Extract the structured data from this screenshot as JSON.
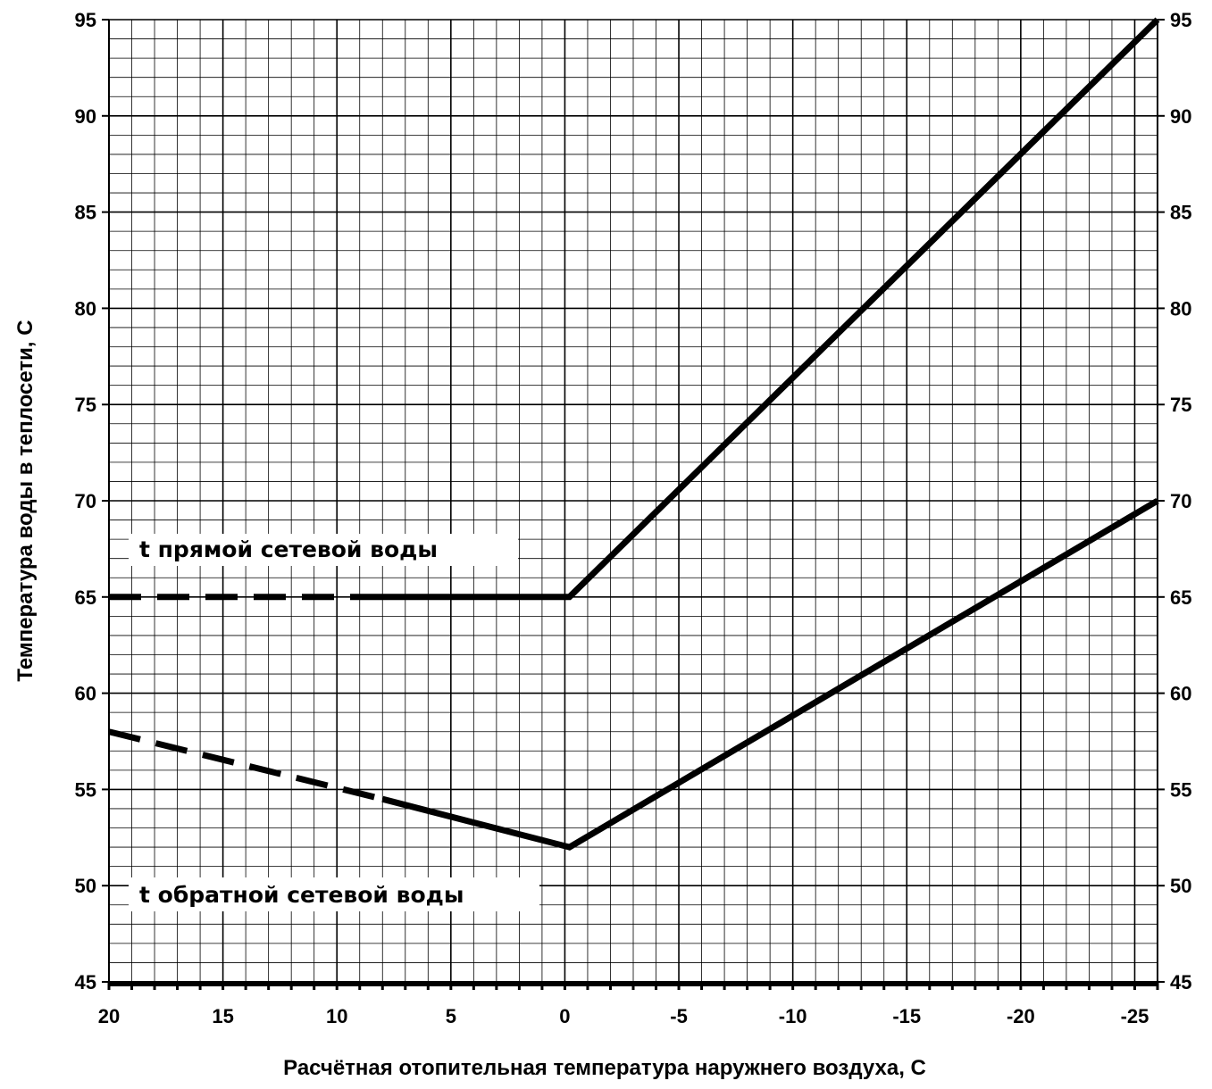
{
  "chart_data": {
    "type": "line",
    "xlabel": "Расчётная отопительная температура наружнего воздуха,  С",
    "ylabel": "Температура воды в теплосети,  С",
    "xlim": [
      20,
      -26
    ],
    "ylim": [
      45,
      95
    ],
    "x_ticks": [
      "20",
      "15",
      "10",
      "5",
      "0",
      "-5",
      "-10",
      "-15",
      "-20",
      "-25"
    ],
    "y_ticks": [
      "45",
      "50",
      "55",
      "60",
      "65",
      "70",
      "75",
      "80",
      "85",
      "90",
      "95"
    ],
    "grid": true,
    "series": [
      {
        "name": "t прямой сетевой воды",
        "solid": {
          "x": [
            9,
            -0.2,
            -26
          ],
          "y": [
            65,
            65,
            95
          ]
        },
        "dashed": {
          "x": [
            20,
            9
          ],
          "y": [
            65,
            65
          ]
        }
      },
      {
        "name": "t обратной сетевой воды",
        "solid": {
          "x": [
            8,
            -0.2,
            -26
          ],
          "y": [
            54.5,
            52,
            70
          ]
        },
        "dashed": {
          "x": [
            20,
            8
          ],
          "y": [
            58,
            54.5
          ]
        }
      }
    ]
  }
}
